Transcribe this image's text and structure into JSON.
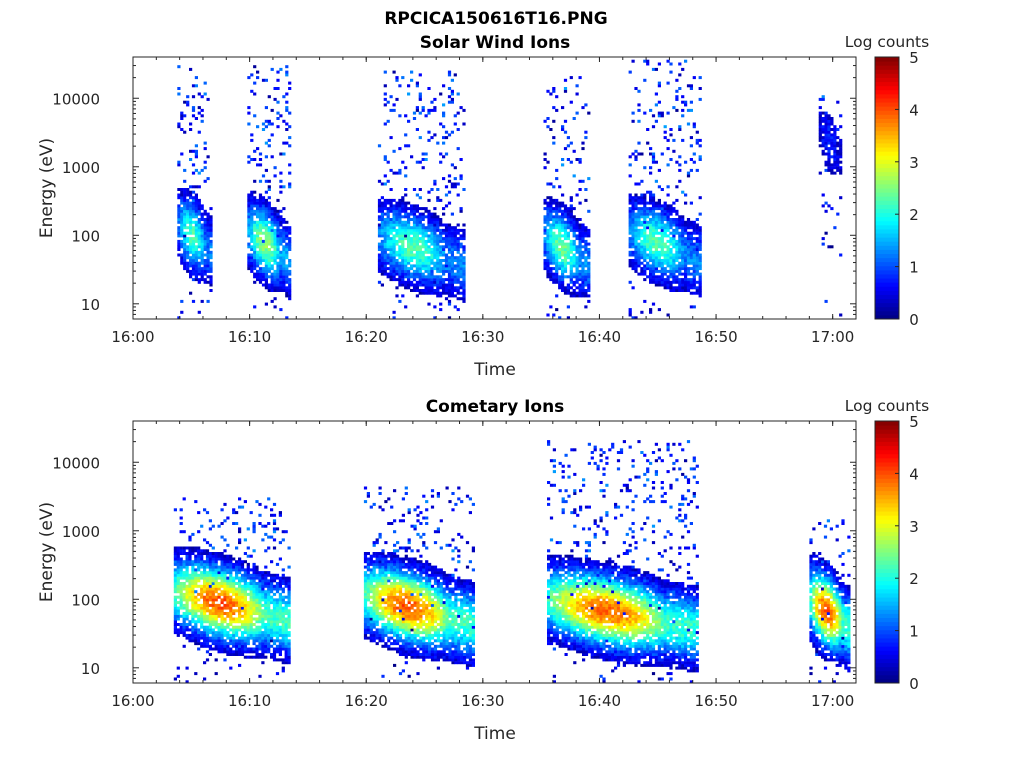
{
  "figure_title": "RPCICA150616T16.PNG",
  "chart_data": [
    {
      "type": "heatmap",
      "title": "Solar Wind Ions",
      "xlabel": "Time",
      "ylabel": "Energy (eV)",
      "yscale": "log",
      "ylim": [
        6,
        40000
      ],
      "xlim": [
        "16:00",
        "17:02"
      ],
      "xticks": [
        "16:00",
        "16:10",
        "16:20",
        "16:30",
        "16:40",
        "16:50",
        "17:00"
      ],
      "yticks": [
        10,
        100,
        1000,
        10000
      ],
      "ytick_labels": [
        "10",
        "100",
        "1000",
        "10000"
      ],
      "colorbar": {
        "label": "Log counts",
        "range": [
          0,
          5
        ],
        "ticks": [
          "0",
          "1",
          "2",
          "3",
          "4",
          "5"
        ],
        "colormap": "jet"
      },
      "bursts": [
        {
          "t_start_min": 3.8,
          "t_end_min": 6.8,
          "peak_energy_ev": 90,
          "peak_log_counts": 2.2,
          "high_energy_max_ev": 30000
        },
        {
          "t_start_min": 9.8,
          "t_end_min": 13.4,
          "peak_energy_ev": 70,
          "peak_log_counts": 2.6,
          "high_energy_max_ev": 30000
        },
        {
          "t_start_min": 21.0,
          "t_end_min": 28.5,
          "peak_energy_ev": 60,
          "peak_log_counts": 2.3,
          "high_energy_max_ev": 26000
        },
        {
          "t_start_min": 35.2,
          "t_end_min": 39.0,
          "peak_energy_ev": 60,
          "peak_log_counts": 2.4,
          "high_energy_max_ev": 22000
        },
        {
          "t_start_min": 42.5,
          "t_end_min": 48.6,
          "peak_energy_ev": 70,
          "peak_log_counts": 2.3,
          "high_energy_max_ev": 35000
        },
        {
          "t_start_min": 58.8,
          "t_end_min": 60.8,
          "peak_energy_ev": 2000,
          "peak_log_counts": 0.8,
          "high_energy_max_ev": 11000
        }
      ]
    },
    {
      "type": "heatmap",
      "title": "Cometary Ions",
      "xlabel": "Time",
      "ylabel": "Energy (eV)",
      "yscale": "log",
      "ylim": [
        6,
        40000
      ],
      "xlim": [
        "16:00",
        "17:02"
      ],
      "xticks": [
        "16:00",
        "16:10",
        "16:20",
        "16:30",
        "16:40",
        "16:50",
        "17:00"
      ],
      "yticks": [
        10,
        100,
        1000,
        10000
      ],
      "ytick_labels": [
        "10",
        "100",
        "1000",
        "10000"
      ],
      "colorbar": {
        "label": "Log counts",
        "range": [
          0,
          5
        ],
        "ticks": [
          "0",
          "1",
          "2",
          "3",
          "4",
          "5"
        ],
        "colormap": "jet"
      },
      "bursts": [
        {
          "t_start_min": 3.5,
          "t_end_min": 13.5,
          "peak_energy_ev": 80,
          "peak_log_counts": 4.0,
          "high_energy_max_ev": 3000
        },
        {
          "t_start_min": 19.8,
          "t_end_min": 29.2,
          "peak_energy_ev": 70,
          "peak_log_counts": 4.0,
          "high_energy_max_ev": 4500
        },
        {
          "t_start_min": 35.5,
          "t_end_min": 48.5,
          "peak_energy_ev": 60,
          "peak_log_counts": 3.9,
          "high_energy_max_ev": 22000
        },
        {
          "t_start_min": 58.0,
          "t_end_min": 61.5,
          "peak_energy_ev": 60,
          "peak_log_counts": 4.0,
          "high_energy_max_ev": 1500
        }
      ]
    }
  ]
}
